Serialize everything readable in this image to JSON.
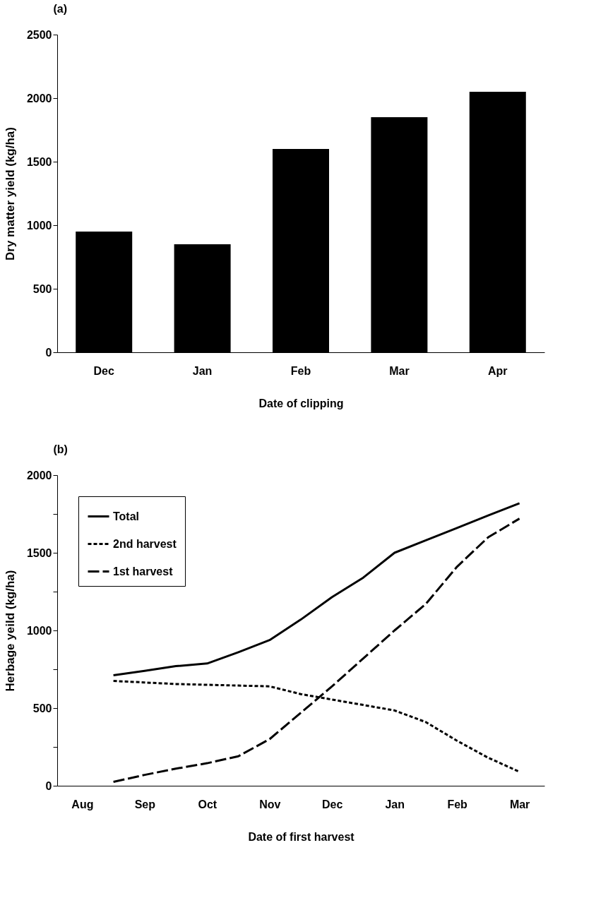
{
  "chart_data": [
    {
      "type": "bar",
      "title": "(a)",
      "xlabel": "Date of clipping",
      "ylabel": "Dry matter yield (kg/ha)",
      "categories": [
        "Dec",
        "Jan",
        "Feb",
        "Mar",
        "Apr"
      ],
      "values": [
        950,
        850,
        1600,
        1850,
        2050
      ],
      "color": "#000000",
      "ylim": [
        0,
        2500
      ],
      "yticks": [
        0,
        500,
        1000,
        1500,
        2000,
        2500
      ],
      "grid": false
    },
    {
      "type": "line",
      "title": "(b)",
      "xlabel": "Date of first harvest",
      "ylabel": "Herbage yeild (kg/ha)",
      "categories": [
        "Aug",
        null,
        "Sep",
        null,
        "Oct",
        null,
        "Nov",
        null,
        "Dec",
        null,
        "Jan",
        null,
        "Feb",
        null,
        "Mar"
      ],
      "ylim": [
        0,
        2000
      ],
      "yticks": [
        0,
        {
          "value": 250,
          "label": null
        },
        500,
        {
          "value": 750,
          "label": null
        },
        1000,
        {
          "value": 1250,
          "label": null
        },
        1500,
        {
          "value": 1750,
          "label": null
        },
        2000
      ],
      "grid": false,
      "legend": "top left",
      "marker": "none",
      "series": [
        {
          "name": "Total",
          "color": "#000000",
          "line_style": "solid",
          "values": [
            null,
            711,
            740,
            770,
            787,
            860,
            938,
            1070,
            1215,
            1340,
            1500,
            1580,
            1660,
            1740,
            1819
          ]
        },
        {
          "name": "2nd harvest",
          "color": "#000000",
          "line_style": "dotted",
          "values": [
            null,
            675,
            665,
            655,
            650,
            645,
            640,
            590,
            555,
            520,
            485,
            410,
            290,
            180,
            90
          ]
        },
        {
          "name": "1st harvest",
          "color": "#000000",
          "line_style": "dashed",
          "values": [
            null,
            25,
            70,
            110,
            145,
            190,
            300,
            470,
            640,
            820,
            1000,
            1170,
            1410,
            1600,
            1720
          ]
        }
      ]
    }
  ]
}
